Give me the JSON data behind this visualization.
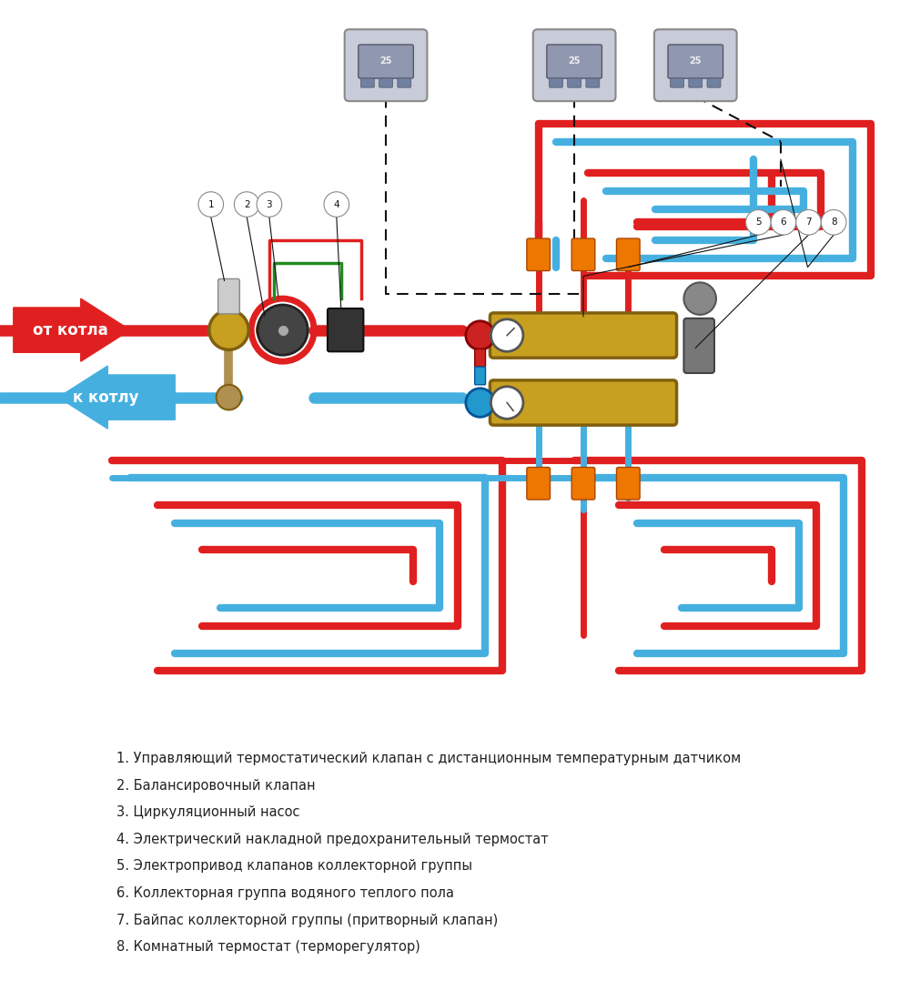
{
  "bg_color": "#ffffff",
  "red_color": "#e02020",
  "blue_color": "#45b0e0",
  "gold_color": "#c8a020",
  "green_color": "#228B22",
  "black_color": "#111111",
  "label_from": "от котла",
  "label_to": "к котлу",
  "legend_items": [
    "1. Управляющий термостатический клапан с дистанционным температурным датчиком",
    "2. Балансировочный клапан",
    "3. Циркуляционный насос",
    "4. Электрический накладной предохранительный термостат",
    "5. Электропривод клапанов коллекторной группы",
    "6. Коллекторная группа водяного теплого пола",
    "7. Байпас коллекторной группы (притворный клапан)",
    "8. Комнатный термостат (терморегулятор)"
  ],
  "lw_main": 9,
  "lw_floor": 6,
  "lw_connect": 5
}
